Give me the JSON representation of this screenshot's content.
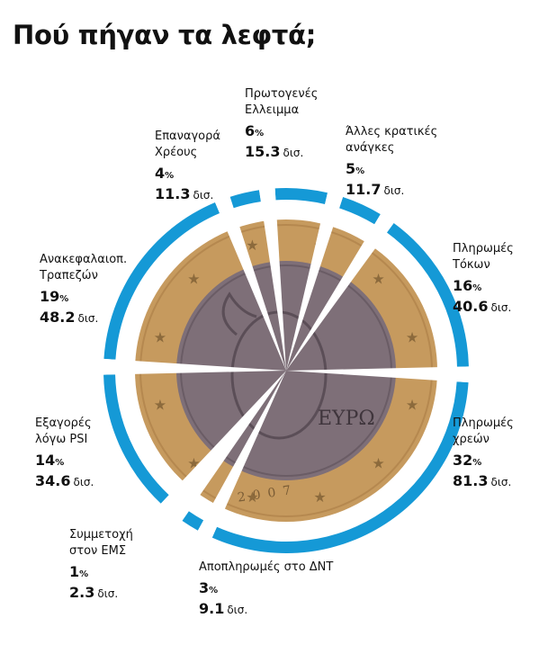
{
  "title": "Πού πήγαν τα λεφτά;",
  "colors": {
    "ring": "#1599d6",
    "coin_rim": "#c69a5e",
    "coin_center": "#7e6f78",
    "gap": "#ffffff"
  },
  "coin_text": "ΕΥΡΩ",
  "coin_year": "2007",
  "chart_data": {
    "type": "pie",
    "title": "Πού πήγαν τα λεφτά;",
    "percent_unit": "%",
    "value_unit": "δισ.",
    "slices": [
      {
        "label": "Πρωτογενές Ελλειμμα",
        "percent": 6,
        "percent_text": "6",
        "value": 15.3,
        "value_text": "15.3"
      },
      {
        "label": "Άλλες κρατικές ανάγκες",
        "percent": 5,
        "percent_text": "5",
        "value": 11.7,
        "value_text": "11.7"
      },
      {
        "label": "Πληρωμές Τόκων",
        "percent": 16,
        "percent_text": "16",
        "value": 40.6,
        "value_text": "40.6"
      },
      {
        "label": "Πληρωμές χρεών",
        "percent": 32,
        "percent_text": "32",
        "value": 81.3,
        "value_text": "81.3"
      },
      {
        "label": "Αποπληρωμές στο ΔΝΤ",
        "percent": 3,
        "percent_text": "3",
        "value": 9.1,
        "value_text": "9.1"
      },
      {
        "label": "Συμμετοχή στον ΕΜΣ",
        "percent": 1,
        "percent_text": "1",
        "value": 2.3,
        "value_text": "2.3"
      },
      {
        "label": "Εξαγορές λόγω PSI",
        "percent": 14,
        "percent_text": "14",
        "value": 34.6,
        "value_text": "34.6"
      },
      {
        "label": "Ανακεφαλαιοπ. Τραπεζών",
        "percent": 19,
        "percent_text": "19",
        "value": 48.2,
        "value_text": "48.2"
      },
      {
        "label": "Επαναγορά Χρέους",
        "percent": 4,
        "percent_text": "4",
        "value": 11.3,
        "value_text": "11.3"
      }
    ]
  }
}
